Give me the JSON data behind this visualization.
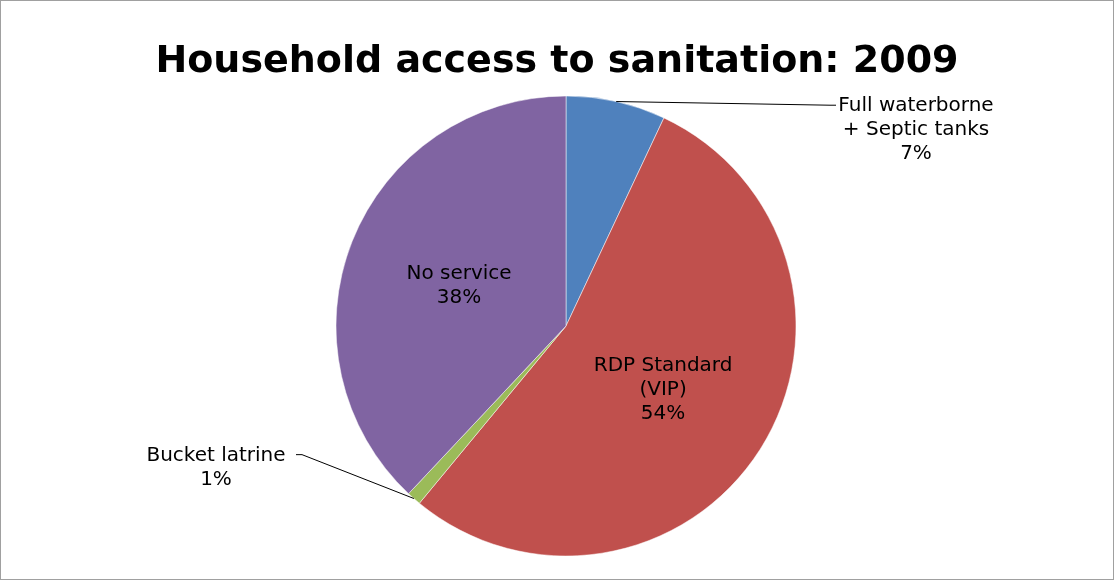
{
  "chart_data": {
    "type": "pie",
    "title": "Household access to sanitation: 2009",
    "categories": [
      "Full waterborne + Septic tanks",
      "RDP Standard (VIP)",
      "Bucket latrine",
      "No service"
    ],
    "values": [
      7,
      54,
      1,
      38
    ],
    "value_labels": [
      "7%",
      "54%",
      "1%",
      "38%"
    ],
    "colors": [
      "#4f81bd",
      "#c0504d",
      "#9bbb59",
      "#8064a2"
    ]
  }
}
